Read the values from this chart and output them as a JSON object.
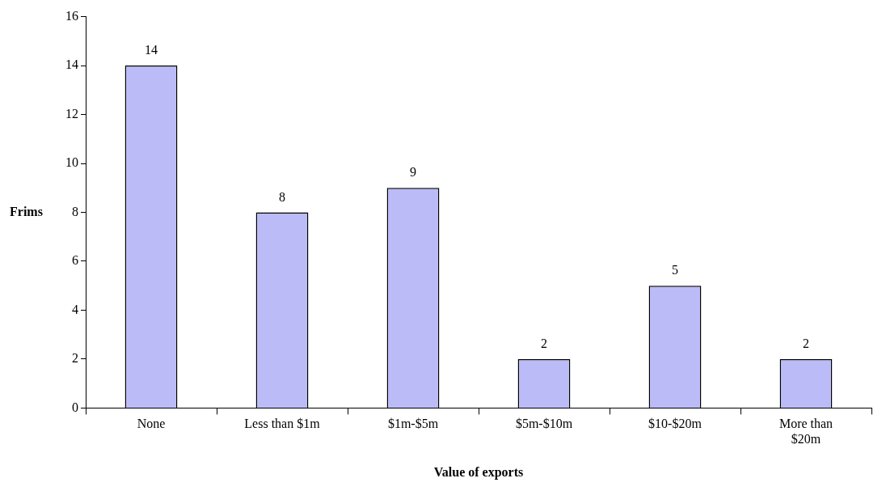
{
  "chart_data": {
    "type": "bar",
    "xlabel": "Value of exports",
    "ylabel": "Frims",
    "categories": [
      "None",
      "Less than $1m",
      "$1m-$5m",
      "$5m-$10m",
      "$10-$20m",
      "More than $20m"
    ],
    "values": [
      14,
      8,
      9,
      2,
      5,
      2
    ],
    "color": "#bbbbf7",
    "ylim": [
      0,
      16
    ],
    "yticks": [
      0,
      2,
      4,
      6,
      8,
      10,
      12,
      14,
      16
    ],
    "grid": false,
    "data_labels": true
  }
}
